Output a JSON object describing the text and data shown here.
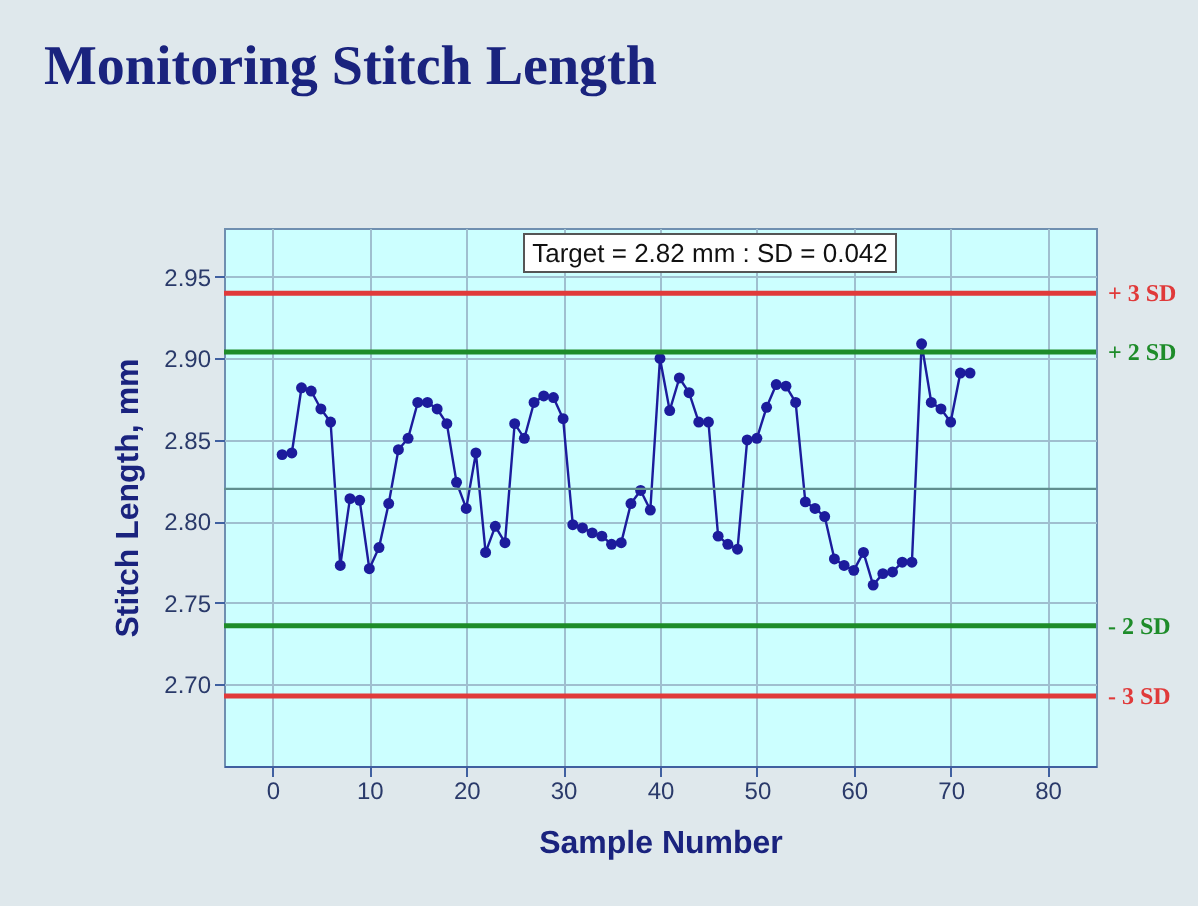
{
  "chart_data": {
    "type": "line",
    "title": "Monitoring Stitch Length",
    "xlabel": "Sample Number",
    "ylabel": "Stitch Length,  mm",
    "annotations": [
      "Target = 2.82 mm : SD = 0.042"
    ],
    "x": [
      1,
      2,
      3,
      4,
      5,
      6,
      7,
      8,
      9,
      10,
      11,
      12,
      13,
      14,
      15,
      16,
      17,
      18,
      19,
      20,
      21,
      22,
      23,
      24,
      25,
      26,
      27,
      28,
      29,
      30,
      31,
      32,
      33,
      34,
      35,
      36,
      37,
      38,
      39,
      40,
      41,
      42,
      43,
      44,
      45,
      46,
      47,
      48,
      49,
      50,
      51,
      52,
      53,
      54,
      55,
      56,
      57,
      58,
      59,
      60,
      61,
      62,
      63,
      64,
      65,
      66,
      67,
      68,
      69,
      70,
      71,
      72
    ],
    "series": [
      {
        "color": "#1c1c9c",
        "values": [
          2.841,
          2.842,
          2.882,
          2.88,
          2.869,
          2.861,
          2.773,
          2.814,
          2.813,
          2.771,
          2.784,
          2.811,
          2.844,
          2.851,
          2.873,
          2.873,
          2.869,
          2.86,
          2.824,
          2.808,
          2.842,
          2.781,
          2.797,
          2.787,
          2.86,
          2.851,
          2.873,
          2.877,
          2.876,
          2.863,
          2.798,
          2.796,
          2.793,
          2.791,
          2.786,
          2.787,
          2.811,
          2.819,
          2.807,
          2.9,
          2.868,
          2.888,
          2.879,
          2.861,
          2.861,
          2.791,
          2.786,
          2.783,
          2.85,
          2.851,
          2.87,
          2.884,
          2.883,
          2.873,
          2.812,
          2.808,
          2.803,
          2.777,
          2.773,
          2.77,
          2.781,
          2.761,
          2.768,
          2.769,
          2.775,
          2.775,
          2.909,
          2.873,
          2.869,
          2.861,
          2.891,
          2.891
        ]
      }
    ],
    "xlim": [
      -5,
      85
    ],
    "xticks": [
      0,
      10,
      20,
      30,
      40,
      50,
      60,
      70,
      80
    ],
    "ylim": [
      2.65,
      2.98
    ],
    "yticks": [
      {
        "value": 2.7,
        "label": "2.70"
      },
      2.75,
      {
        "value": 2.8,
        "label": "2.80"
      },
      2.85,
      {
        "value": 2.9,
        "label": "2.90"
      },
      2.95
    ],
    "ref_lines": [
      {
        "axis": "y",
        "value": 2.94,
        "label": "+ 3 SD",
        "color": "#e03a3a"
      },
      {
        "axis": "y",
        "value": 2.904,
        "label": "+ 2 SD",
        "color": "#1e8c2a"
      },
      {
        "axis": "y",
        "value": 2.82,
        "color": "#5f8f8f"
      },
      {
        "axis": "y",
        "value": 2.736,
        "label": "- 2 SD",
        "color": "#1e8c2a"
      },
      {
        "axis": "y",
        "value": 2.693,
        "label": "- 3 SD",
        "color": "#e03a3a"
      }
    ],
    "grid": true,
    "marker": "circle",
    "line_style": "solid"
  }
}
